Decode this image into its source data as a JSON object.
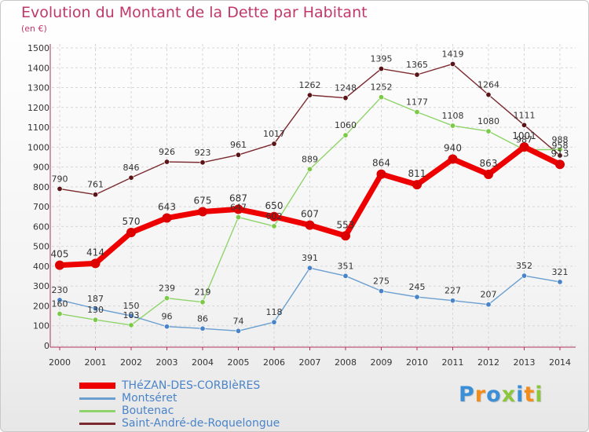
{
  "header": {
    "title": "Evolution du Montant de la Dette par Habitant",
    "unit": "(en €)"
  },
  "logo": {
    "text": "Proxiti"
  },
  "chart_data": {
    "type": "line",
    "title": "Evolution du Montant de la Dette par Habitant",
    "ylabel": "(en €)",
    "xlabel": "",
    "x": [
      "2000",
      "2001",
      "2002",
      "2003",
      "2004",
      "2005",
      "2006",
      "2007",
      "2008",
      "2009",
      "2010",
      "2011",
      "2012",
      "2013",
      "2014"
    ],
    "ylim": [
      0,
      1500
    ],
    "yticks": [
      0,
      100,
      200,
      300,
      400,
      500,
      600,
      700,
      800,
      900,
      1000,
      1100,
      1200,
      1300,
      1400,
      1500
    ],
    "grid": true,
    "legend_position": "bottom-left",
    "series": [
      {
        "name": "Saint-André-de-Roquelongue",
        "color": "#7b2a2f",
        "marker": "#5a1418",
        "values": [
          790,
          761,
          846,
          926,
          923,
          961,
          1017,
          1262,
          1248,
          1395,
          1365,
          1419,
          1264,
          1111,
          958
        ]
      },
      {
        "name": "Boutenac",
        "color": "#8fd46a",
        "marker": "#7cc948",
        "values": [
          160,
          130,
          103,
          239,
          219,
          647,
          602,
          889,
          1060,
          1252,
          1177,
          1108,
          1080,
          987,
          988
        ]
      },
      {
        "name": "Montséret",
        "color": "#6a9fd0",
        "marker": "#4a84c8",
        "values": [
          230,
          187,
          150,
          96,
          86,
          74,
          118,
          391,
          351,
          275,
          245,
          227,
          207,
          352,
          321
        ]
      },
      {
        "name": "THéZAN-DES-CORBIèRES",
        "color": "#ee0000",
        "marker": "#dd0000",
        "values": [
          405,
          414,
          570,
          643,
          675,
          687,
          650,
          607,
          553,
          864,
          811,
          940,
          863,
          1001,
          913
        ]
      }
    ]
  }
}
